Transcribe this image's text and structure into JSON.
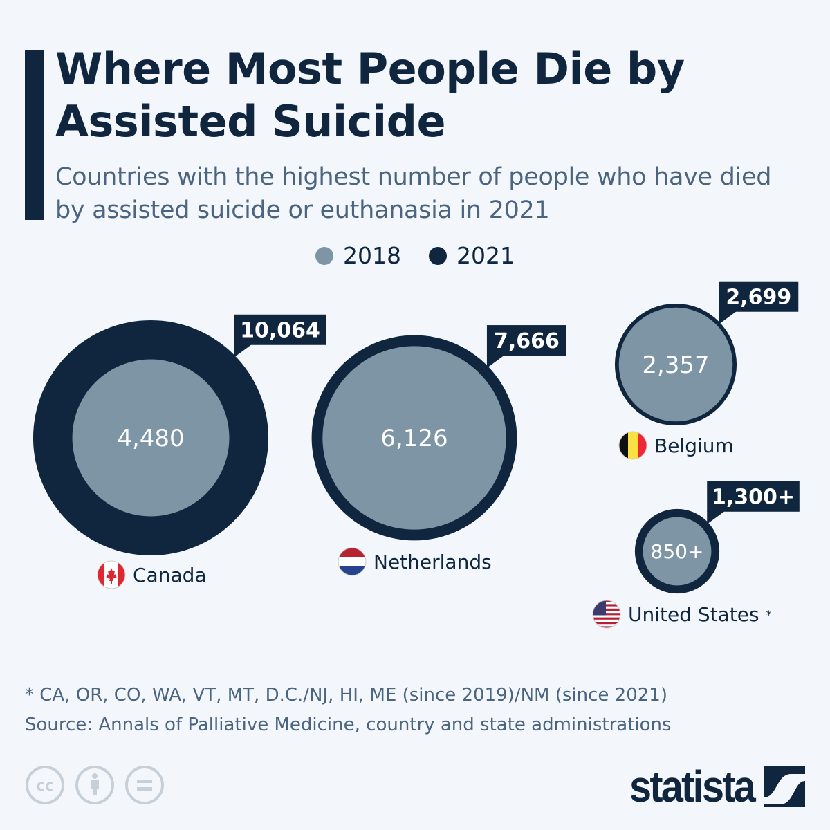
{
  "title": "Where Most People Die by Assisted Suicide",
  "subtitle": "Countries with the highest number of people who have died by assisted suicide or euthanasia in 2021",
  "colors": {
    "2018": "#7d95a4",
    "2021": "#10263f",
    "background": "#f3f7fb"
  },
  "chart_data": {
    "type": "bubble",
    "title": "Where Most People Die by Assisted Suicide",
    "legend": {
      "position": "top",
      "entries": [
        "2018",
        "2021"
      ]
    },
    "series": [
      {
        "name": "2018",
        "color": "#7d95a4"
      },
      {
        "name": "2021",
        "color": "#10263f"
      }
    ],
    "countries": [
      {
        "name": "Canada",
        "flag": "canada-flag",
        "value_2018": 4480,
        "value_2021": 10064,
        "label_2018": "4,480",
        "label_2021": "10,064",
        "footnote": ""
      },
      {
        "name": "Netherlands",
        "flag": "netherlands-flag",
        "value_2018": 6126,
        "value_2021": 7666,
        "label_2018": "6,126",
        "label_2021": "7,666",
        "footnote": ""
      },
      {
        "name": "Belgium",
        "flag": "belgium-flag",
        "value_2018": 2357,
        "value_2021": 2699,
        "label_2018": "2,357",
        "label_2021": "2,699",
        "footnote": ""
      },
      {
        "name": "United States",
        "flag": "us-flag",
        "value_2018": 850,
        "value_2021": 1300,
        "label_2018": "850+",
        "label_2021": "1,300+",
        "footnote": "*"
      }
    ]
  },
  "footnote": "* CA, OR, CO, WA, VT, MT, D.C./NJ, HI, ME (since 2019)/NM (since 2021)",
  "source": "Source: Annals of Palliative Medicine, country and state administrations",
  "logo": "statista",
  "license_icons": [
    "cc-icon",
    "attribution-icon",
    "no-derivatives-icon"
  ]
}
